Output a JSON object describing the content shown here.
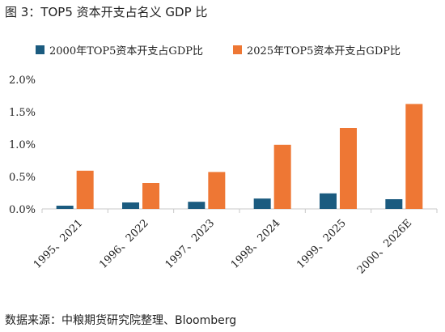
{
  "title": "图 3：TOP5 资本开支占名义 GDP 比",
  "source": "数据来源：中粮期货研究院整理、Bloomberg",
  "colors": {
    "series_1": "#1b5b7f",
    "series_2": "#ee7734",
    "axis": "#c8c8c8",
    "text": "#222222"
  },
  "chart_data": {
    "type": "bar",
    "title": "",
    "xlabel": "",
    "ylabel": "",
    "categories": [
      "1995、2021",
      "1996、2022",
      "1997、2023",
      "1998、2024",
      "1999、2025",
      "2000、2026E"
    ],
    "series": [
      {
        "name": "2000年TOP5资本开支占GDP比",
        "values": [
          0.05,
          0.1,
          0.11,
          0.16,
          0.24,
          0.15
        ]
      },
      {
        "name": "2025年TOP5资本开支占GDP比",
        "values": [
          0.59,
          0.4,
          0.57,
          0.99,
          1.25,
          1.62
        ]
      }
    ],
    "ylim": [
      0,
      2.0
    ],
    "yticks": [
      "0.0%",
      "0.5%",
      "1.0%",
      "1.5%",
      "2.0%"
    ],
    "ytick_values": [
      0,
      0.5,
      1.0,
      1.5,
      2.0
    ],
    "grid": false,
    "legend_position": "top"
  }
}
